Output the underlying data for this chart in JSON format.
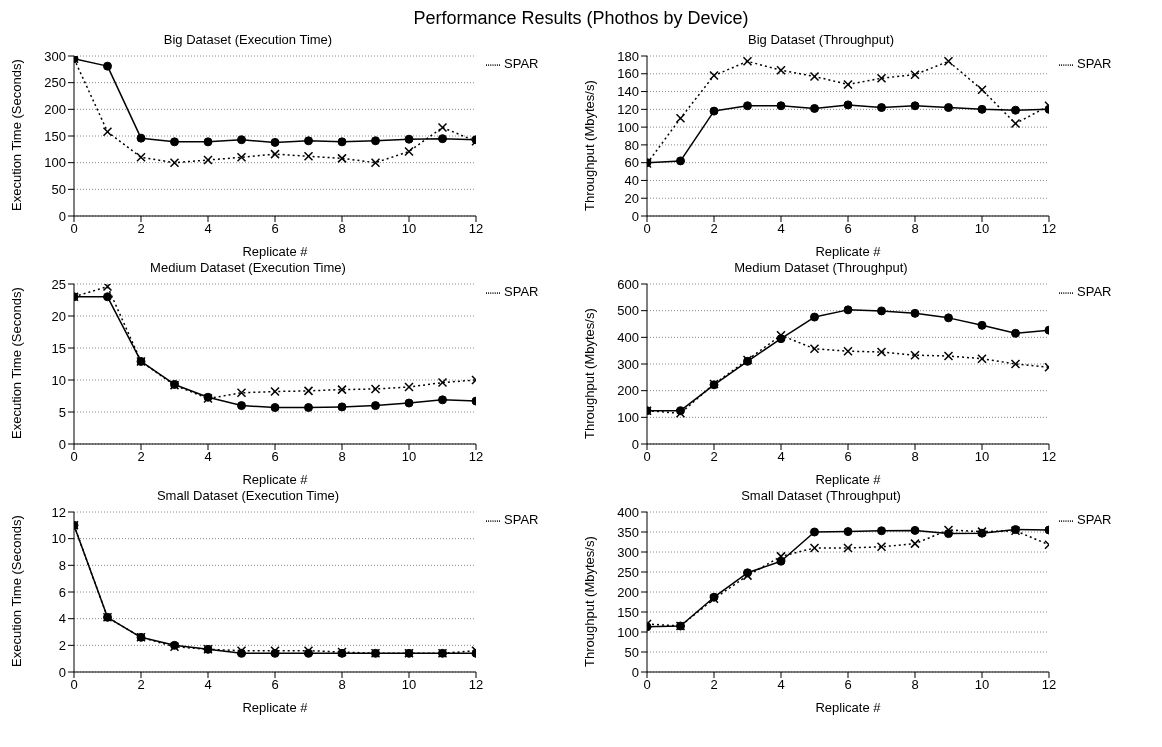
{
  "chart_data": [
    {
      "type": "line",
      "title": "Performance Results (Phothos by Device)",
      "subtitle": "Big Dataset (Execution Time)",
      "xlabel": "Replicate #",
      "ylabel": "Execution Time (Seconds)",
      "x": [
        0,
        1,
        2,
        3,
        4,
        5,
        6,
        7,
        8,
        9,
        10,
        11,
        12
      ],
      "xlim": [
        0,
        12
      ],
      "xticks": [
        0,
        2,
        4,
        6,
        8,
        10,
        12
      ],
      "ylim": [
        0,
        300
      ],
      "yticks": [
        0,
        50,
        100,
        150,
        200,
        250,
        300
      ],
      "grid": "y",
      "legend": "top right",
      "series": [
        {
          "color": "#000000",
          "marker": "circle",
          "line_style": "solid",
          "values": [
            295,
            281,
            146,
            139,
            139,
            143,
            138,
            141,
            139,
            141,
            144,
            145,
            143
          ]
        },
        {
          "name": "SPAR",
          "color": "#000000",
          "marker": "cross",
          "line_style": "dotted",
          "values": [
            295,
            158,
            110,
            100,
            105,
            110,
            116,
            112,
            108,
            100,
            121,
            166,
            140
          ]
        }
      ]
    },
    {
      "type": "line",
      "title": "Big Dataset (Throughput)",
      "xlabel": "Replicate #",
      "ylabel": "Throughput (Mbytes/s)",
      "x": [
        0,
        1,
        2,
        3,
        4,
        5,
        6,
        7,
        8,
        9,
        10,
        11,
        12
      ],
      "xlim": [
        0,
        12
      ],
      "xticks": [
        0,
        2,
        4,
        6,
        8,
        10,
        12
      ],
      "ylim": [
        0,
        180
      ],
      "yticks": [
        0,
        20,
        40,
        60,
        80,
        100,
        120,
        140,
        160,
        180
      ],
      "grid": "y",
      "legend": "top right",
      "series": [
        {
          "color": "#000000",
          "marker": "circle",
          "line_style": "solid",
          "values": [
            60,
            62,
            118,
            124,
            124,
            121,
            125,
            122,
            124,
            122,
            120,
            119,
            120
          ]
        },
        {
          "name": "SPAR",
          "color": "#000000",
          "marker": "cross",
          "line_style": "dotted",
          "values": [
            59,
            110,
            158,
            174,
            164,
            157,
            148,
            155,
            159,
            174,
            142,
            104,
            124
          ]
        }
      ]
    },
    {
      "type": "line",
      "title": "Medium Dataset (Execution Time)",
      "xlabel": "Replicate #",
      "ylabel": "Execution Time (Seconds)",
      "x": [
        0,
        1,
        2,
        3,
        4,
        5,
        6,
        7,
        8,
        9,
        10,
        11,
        12
      ],
      "xlim": [
        0,
        12
      ],
      "xticks": [
        0,
        2,
        4,
        6,
        8,
        10,
        12
      ],
      "ylim": [
        0,
        25
      ],
      "yticks": [
        0,
        5,
        10,
        15,
        20,
        25
      ],
      "grid": "y",
      "legend": "top right",
      "series": [
        {
          "color": "#000000",
          "marker": "circle",
          "line_style": "solid",
          "values": [
            23,
            23,
            12.9,
            9.3,
            7.3,
            6.0,
            5.7,
            5.7,
            5.8,
            6.0,
            6.4,
            6.9,
            6.7
          ]
        },
        {
          "name": "SPAR",
          "color": "#000000",
          "marker": "cross",
          "line_style": "dotted",
          "values": [
            23,
            24.6,
            12.9,
            9.2,
            7.1,
            8.0,
            8.2,
            8.3,
            8.5,
            8.6,
            8.9,
            9.6,
            10.0
          ]
        }
      ]
    },
    {
      "type": "line",
      "title": "Medium Dataset (Throughput)",
      "xlabel": "Replicate #",
      "ylabel": "Throughput (Mbytes/s)",
      "x": [
        0,
        1,
        2,
        3,
        4,
        5,
        6,
        7,
        8,
        9,
        10,
        11,
        12
      ],
      "xlim": [
        0,
        12
      ],
      "xticks": [
        0,
        2,
        4,
        6,
        8,
        10,
        12
      ],
      "ylim": [
        0,
        600
      ],
      "yticks": [
        0,
        100,
        200,
        300,
        400,
        500,
        600
      ],
      "grid": "y",
      "legend": "top right",
      "series": [
        {
          "color": "#000000",
          "marker": "circle",
          "line_style": "solid",
          "values": [
            125,
            125,
            222,
            310,
            395,
            476,
            503,
            499,
            490,
            473,
            445,
            415,
            427
          ]
        },
        {
          "name": "SPAR",
          "color": "#000000",
          "marker": "cross",
          "line_style": "dotted",
          "values": [
            125,
            115,
            225,
            315,
            408,
            357,
            348,
            345,
            333,
            330,
            320,
            300,
            288
          ]
        }
      ]
    },
    {
      "type": "line",
      "title": "Small Dataset (Execution Time)",
      "xlabel": "Replicate #",
      "ylabel": "Execution Time (Seconds)",
      "x": [
        0,
        1,
        2,
        3,
        4,
        5,
        6,
        7,
        8,
        9,
        10,
        11,
        12
      ],
      "xlim": [
        0,
        12
      ],
      "xticks": [
        0,
        2,
        4,
        6,
        8,
        10,
        12
      ],
      "ylim": [
        0,
        12
      ],
      "yticks": [
        0,
        2,
        4,
        6,
        8,
        10,
        12
      ],
      "grid": "y",
      "legend": "top right",
      "series": [
        {
          "color": "#000000",
          "marker": "circle",
          "line_style": "solid",
          "values": [
            11,
            4.1,
            2.6,
            2.0,
            1.7,
            1.4,
            1.4,
            1.4,
            1.4,
            1.4,
            1.4,
            1.4,
            1.4
          ]
        },
        {
          "name": "SPAR",
          "color": "#000000",
          "marker": "cross",
          "line_style": "dotted",
          "values": [
            11,
            4.1,
            2.6,
            1.9,
            1.7,
            1.6,
            1.6,
            1.6,
            1.5,
            1.4,
            1.4,
            1.4,
            1.6
          ]
        }
      ]
    },
    {
      "type": "line",
      "title": "Small Dataset (Throughput)",
      "xlabel": "Replicate #",
      "ylabel": "Throughput (Mbytes/s)",
      "x": [
        0,
        1,
        2,
        3,
        4,
        5,
        6,
        7,
        8,
        9,
        10,
        11,
        12
      ],
      "xlim": [
        0,
        12
      ],
      "xticks": [
        0,
        2,
        4,
        6,
        8,
        10,
        12
      ],
      "ylim": [
        0,
        400
      ],
      "yticks": [
        0,
        50,
        100,
        150,
        200,
        250,
        300,
        350,
        400
      ],
      "grid": "y",
      "legend": "top right",
      "series": [
        {
          "color": "#000000",
          "marker": "circle",
          "line_style": "solid",
          "values": [
            113,
            115,
            187,
            248,
            277,
            350,
            351,
            353,
            354,
            346,
            347,
            356,
            355
          ]
        },
        {
          "name": "SPAR",
          "color": "#000000",
          "marker": "cross",
          "line_style": "dotted",
          "values": [
            120,
            115,
            183,
            241,
            289,
            310,
            310,
            313,
            321,
            355,
            351,
            353,
            318
          ]
        }
      ]
    }
  ]
}
